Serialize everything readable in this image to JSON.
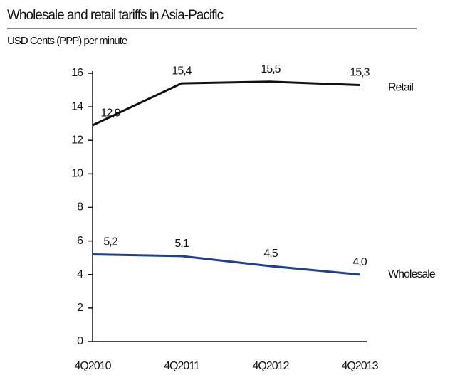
{
  "chart_data": {
    "type": "line",
    "title": "Wholesale and retail tariffs in Asia-Pacific",
    "subtitle": "USD Cents (PPP) per minute",
    "categories": [
      "4Q2010",
      "4Q2011",
      "4Q2012",
      "4Q2013"
    ],
    "series": [
      {
        "name": "Retail",
        "color": "#111111",
        "values": [
          12.9,
          15.4,
          15.5,
          15.3
        ],
        "value_labels": [
          "12,9",
          "15,4",
          "15,5",
          "15,3"
        ]
      },
      {
        "name": "Wholesale",
        "color": "#1f3f8f",
        "values": [
          5.2,
          5.1,
          4.5,
          4.0
        ],
        "value_labels": [
          "5,2",
          "5,1",
          "4,5",
          "4,0"
        ]
      }
    ],
    "ylim": [
      0,
      16
    ],
    "yticks": [
      0,
      2,
      4,
      6,
      8,
      10,
      12,
      14,
      16
    ],
    "grid": false
  }
}
